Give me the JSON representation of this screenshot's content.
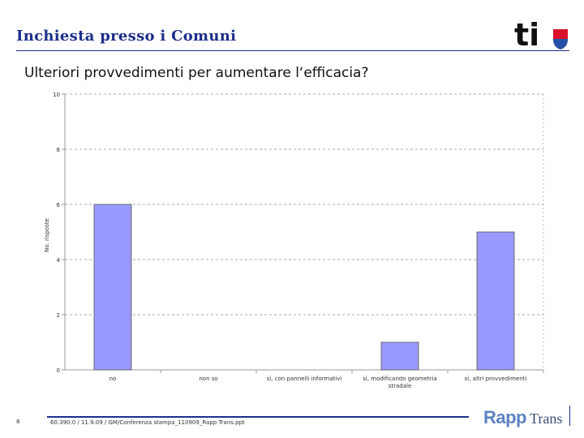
{
  "header": {
    "title": "Inchiesta presso i Comuni",
    "logo_text": "ti",
    "logo_color": "#111111",
    "shield_colors": [
      "#d9112b",
      "#2451a8"
    ]
  },
  "question": "Ulteriori provvedimenti per aumentare l‘efficacia?",
  "chart_data": {
    "type": "bar",
    "categories": [
      "no",
      "non so",
      "sì, con pannelli informativi",
      "sì, modificando geometria stradale",
      "sì, altri provvedimenti"
    ],
    "values": [
      6,
      0,
      0,
      1,
      5
    ],
    "ylabel": "No. risposte",
    "ylim": [
      0,
      10
    ],
    "yticks": [
      "0",
      "2",
      "4",
      "6",
      "8",
      "10"
    ],
    "grid": true,
    "bar_color": "#9999ff"
  },
  "footer": {
    "page_number": "8",
    "text": "60.390.0 / 11.9.09 / GM/Conferenza stampa_110909_Rapp Trans.ppt",
    "brand_part1": "Rapp",
    "brand_part2": "Trans",
    "accent": "#1c2f8a"
  }
}
